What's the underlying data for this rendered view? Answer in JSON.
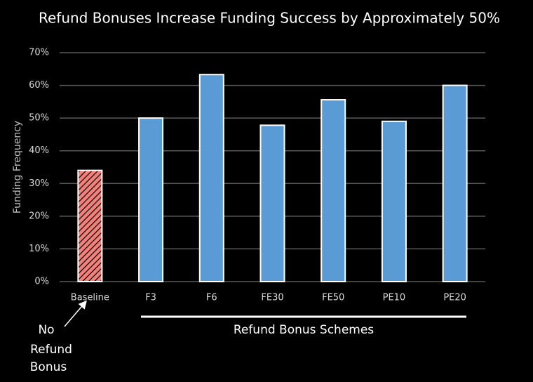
{
  "chart_data": {
    "type": "bar",
    "title": "Refund Bonuses Increase Funding Success by Approximately 50%",
    "y_label": "Funding Frequency",
    "categories": [
      "Baseline",
      "F3",
      "F6",
      "FE30",
      "FE50",
      "PE10",
      "PE20"
    ],
    "values": [
      34,
      50,
      63.3,
      47.8,
      55.6,
      49,
      60
    ],
    "colors": [
      "#f4807a",
      "#5b9bd5",
      "#5b9bd5",
      "#5b9bd5",
      "#5b9bd5",
      "#5b9bd5",
      "#5b9bd5"
    ],
    "hatch": [
      true,
      false,
      false,
      false,
      false,
      false,
      false
    ],
    "ylim": [
      0,
      70
    ],
    "yticks": [
      {
        "value": 0,
        "label": "0%"
      },
      {
        "value": 10,
        "label": "10%"
      },
      {
        "value": 20,
        "label": "20%"
      },
      {
        "value": 30,
        "label": "30%"
      },
      {
        "value": 40,
        "label": "40%"
      },
      {
        "value": 50,
        "label": "50%"
      },
      {
        "value": 60,
        "label": "60%"
      },
      {
        "value": 70,
        "label": "70%"
      }
    ],
    "grid": true,
    "annotations": [
      {
        "lines": [
          "No",
          "Refund",
          "Bonus"
        ]
      },
      {
        "text": "Refund Bonus Schemes"
      }
    ]
  }
}
